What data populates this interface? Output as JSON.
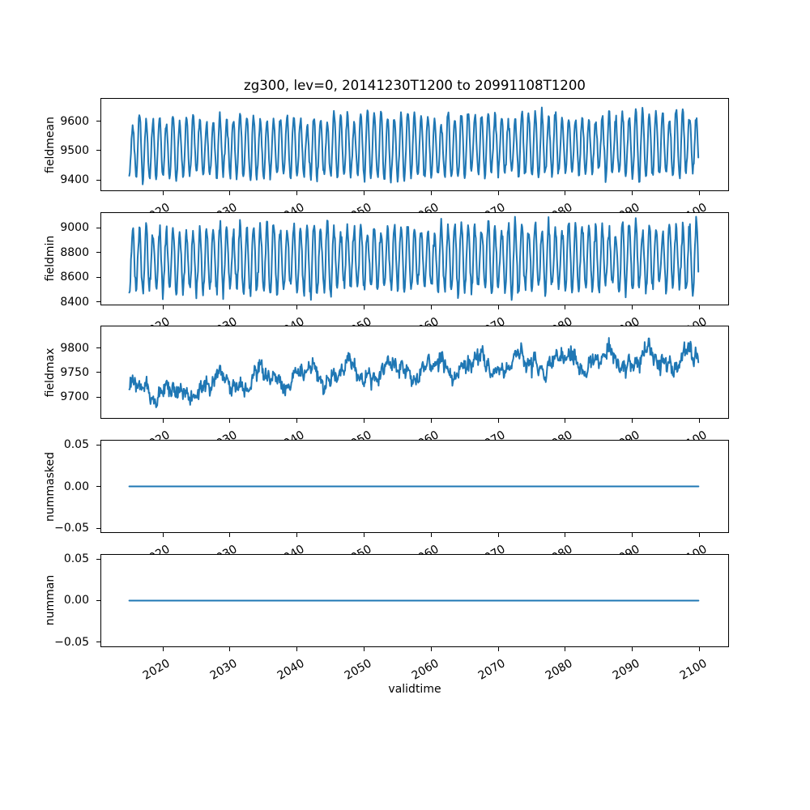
{
  "colors": {
    "background": "#ffffff",
    "frame": "#000000",
    "text": "#000000"
  },
  "chart_data": {
    "type": "line",
    "title": "zg300, lev=0, 20141230T1200 to 20991108T1200",
    "xlabel": "validtime",
    "x_range": {
      "start_time": "20141230T1200",
      "end_time": "20991108T1200",
      "start_year": 2014.997,
      "end_year": 2099.853
    },
    "xlim": [
      2010.7,
      2104.4
    ],
    "xticks": [
      2020,
      2030,
      2040,
      2050,
      2060,
      2070,
      2080,
      2090,
      2100
    ],
    "xticklabels": [
      "2020",
      "2030",
      "2040",
      "2050",
      "2060",
      "2070",
      "2080",
      "2090",
      "2100"
    ],
    "samples_per_year": 12,
    "line_color": "#1f77b4",
    "legend": "none",
    "grid": false,
    "subplots": [
      {
        "ylabel": "fieldmean",
        "ylim": [
          9365,
          9676
        ],
        "yticks": [
          9400,
          9500,
          9600
        ],
        "yticklabels": [
          "9400",
          "9500",
          "9600"
        ],
        "pattern": "annual sinusoidal oscillation, slight upward trend",
        "approx_min": 9390,
        "approx_max": 9660,
        "gen": {
          "kind": "seasonal",
          "base": 9506,
          "trend": 16,
          "amp": 100,
          "amp_jitter": 18,
          "center_jitter": 8,
          "noise": 8.5,
          "seed": 7
        }
      },
      {
        "ylabel": "fieldmin",
        "ylim": [
          8381,
          9123
        ],
        "yticks": [
          8400,
          8600,
          8800,
          9000
        ],
        "yticklabels": [
          "8400",
          "8600",
          "8800",
          "9000"
        ],
        "pattern": "annual oscillation, large amplitude, noisy",
        "approx_min": 8420,
        "approx_max": 9080,
        "gen": {
          "kind": "seasonal",
          "base": 8742,
          "trend": 22,
          "amp": 250,
          "amp_jitter": 48,
          "center_jitter": 18,
          "noise": 28,
          "seed": 11
        }
      },
      {
        "ylabel": "fieldmax",
        "ylim": [
          9656,
          9844
        ],
        "yticks": [
          9700,
          9750,
          9800
        ],
        "yticklabels": [
          "9700",
          "9750",
          "9800"
        ],
        "pattern": "noisy series rising from ~9712 to ~9780 with multi-year swings and an early dip near 2022",
        "approx_min": 9672,
        "approx_max": 9828,
        "gen": {
          "kind": "trendnoise",
          "base": 9712,
          "trend": 64,
          "slow_amp": 17,
          "slow_period": 6.4,
          "slow2_amp": 9,
          "slow2_period": 2.77,
          "annual_amp": 7,
          "noise": 8,
          "dip_year": 2022.7,
          "dip_depth": 26,
          "dip_width": 1.1,
          "seed": 23
        }
      },
      {
        "ylabel": "nummasked",
        "ylim": [
          -0.055,
          0.055
        ],
        "yticks": [
          -0.05,
          0,
          0.05
        ],
        "yticklabels": [
          "−0.05",
          "0.00",
          "0.05"
        ],
        "pattern": "constant",
        "value": 0,
        "gen": {
          "kind": "constant",
          "value": 0
        }
      },
      {
        "ylabel": "numman",
        "ylim": [
          -0.055,
          0.055
        ],
        "yticks": [
          -0.05,
          0,
          0.05
        ],
        "yticklabels": [
          "−0.05",
          "0.00",
          "0.05"
        ],
        "pattern": "constant",
        "value": 0,
        "gen": {
          "kind": "constant",
          "value": 0
        }
      }
    ]
  }
}
